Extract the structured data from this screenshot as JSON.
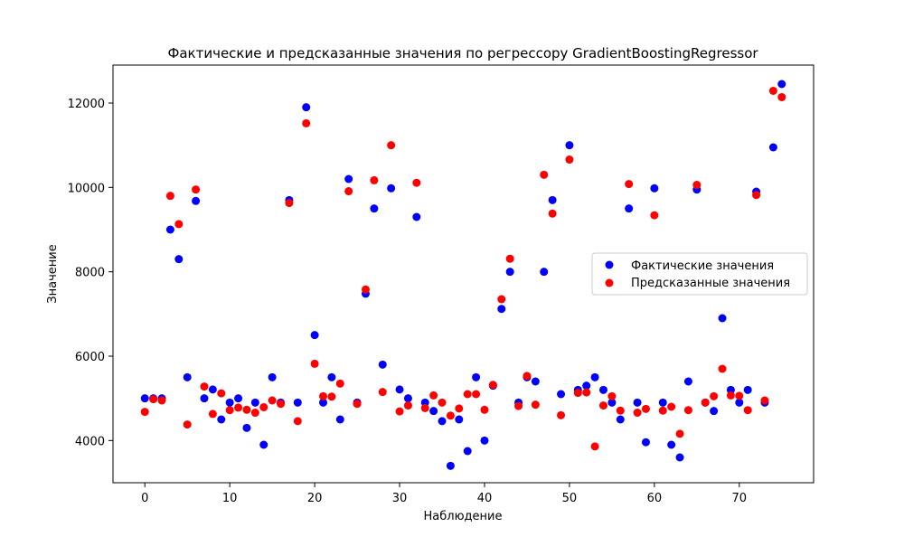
{
  "chart_data": {
    "type": "scatter",
    "title": "Фактические и предсказанные значения по регрессору GradientBoostingRegressor",
    "xlabel": "Наблюдение",
    "ylabel": "Значение",
    "xlim": [
      -3.75,
      78.75
    ],
    "ylim": [
      3000,
      12900
    ],
    "x_ticks": [
      0,
      10,
      20,
      30,
      40,
      50,
      60,
      70
    ],
    "y_ticks": [
      4000,
      6000,
      8000,
      10000,
      12000
    ],
    "grid": false,
    "legend_position": "center-right",
    "series": [
      {
        "name": "Фактические значения",
        "color": "#0000ff",
        "x": [
          0,
          1,
          2,
          3,
          4,
          5,
          6,
          7,
          8,
          9,
          10,
          11,
          12,
          13,
          14,
          15,
          16,
          17,
          18,
          19,
          20,
          21,
          22,
          23,
          24,
          25,
          26,
          27,
          28,
          29,
          30,
          31,
          32,
          33,
          34,
          35,
          36,
          37,
          38,
          39,
          40,
          41,
          42,
          43,
          44,
          45,
          46,
          47,
          48,
          49,
          50,
          51,
          52,
          53,
          54,
          55,
          56,
          57,
          58,
          59,
          60,
          61,
          62,
          63,
          64,
          65,
          66,
          67,
          68,
          69,
          70,
          71,
          72,
          73,
          74,
          75
        ],
        "y": [
          5000,
          5000,
          5000,
          9000,
          8300,
          5500,
          9680,
          5000,
          5210,
          4500,
          4900,
          5000,
          4300,
          4900,
          3900,
          5500,
          4900,
          9700,
          4900,
          11900,
          6500,
          4900,
          5500,
          4500,
          10200,
          4900,
          7480,
          9500,
          5800,
          9980,
          5210,
          5000,
          9300,
          4900,
          4700,
          4460,
          3400,
          4500,
          3750,
          5500,
          4000,
          5300,
          7120,
          8000,
          4900,
          5500,
          5400,
          8000,
          9700,
          5100,
          11000,
          5200,
          5300,
          5500,
          5200,
          4900,
          4500,
          9500,
          4900,
          3960,
          9980,
          4900,
          3900,
          3600,
          5400,
          9950,
          4900,
          4700,
          6900,
          5200,
          4900,
          5200,
          9900,
          4900,
          10950,
          12450
        ]
      },
      {
        "name": "Предсказанные значения",
        "color": "#ff0000",
        "x": [
          0,
          1,
          2,
          3,
          4,
          5,
          6,
          7,
          8,
          9,
          10,
          11,
          12,
          13,
          14,
          15,
          16,
          17,
          18,
          19,
          20,
          21,
          22,
          23,
          24,
          25,
          26,
          27,
          28,
          29,
          30,
          31,
          32,
          33,
          34,
          35,
          36,
          37,
          38,
          39,
          40,
          41,
          42,
          43,
          44,
          45,
          46,
          47,
          48,
          49,
          50,
          51,
          52,
          53,
          54,
          55,
          56,
          57,
          58,
          59,
          60,
          61,
          62,
          63,
          64,
          65,
          66,
          67,
          68,
          69,
          70,
          71,
          72,
          73,
          74,
          75
        ],
        "y": [
          4680,
          4980,
          4950,
          9800,
          9130,
          4380,
          9950,
          5280,
          4630,
          5120,
          4720,
          4780,
          4730,
          4660,
          4790,
          4950,
          4870,
          9630,
          4460,
          11520,
          5820,
          5050,
          5040,
          5350,
          9910,
          4870,
          7580,
          10170,
          5150,
          11000,
          4690,
          4830,
          10110,
          4770,
          5070,
          4900,
          4590,
          4760,
          5100,
          5100,
          4730,
          5320,
          7350,
          8310,
          4820,
          5530,
          4850,
          10300,
          9380,
          4600,
          10660,
          5130,
          5140,
          3860,
          4830,
          5050,
          4710,
          10080,
          4660,
          4750,
          9340,
          4710,
          4800,
          4160,
          4720,
          10060,
          4900,
          5050,
          5700,
          5070,
          5060,
          4720,
          9820,
          4950,
          12290,
          12140
        ]
      }
    ]
  }
}
